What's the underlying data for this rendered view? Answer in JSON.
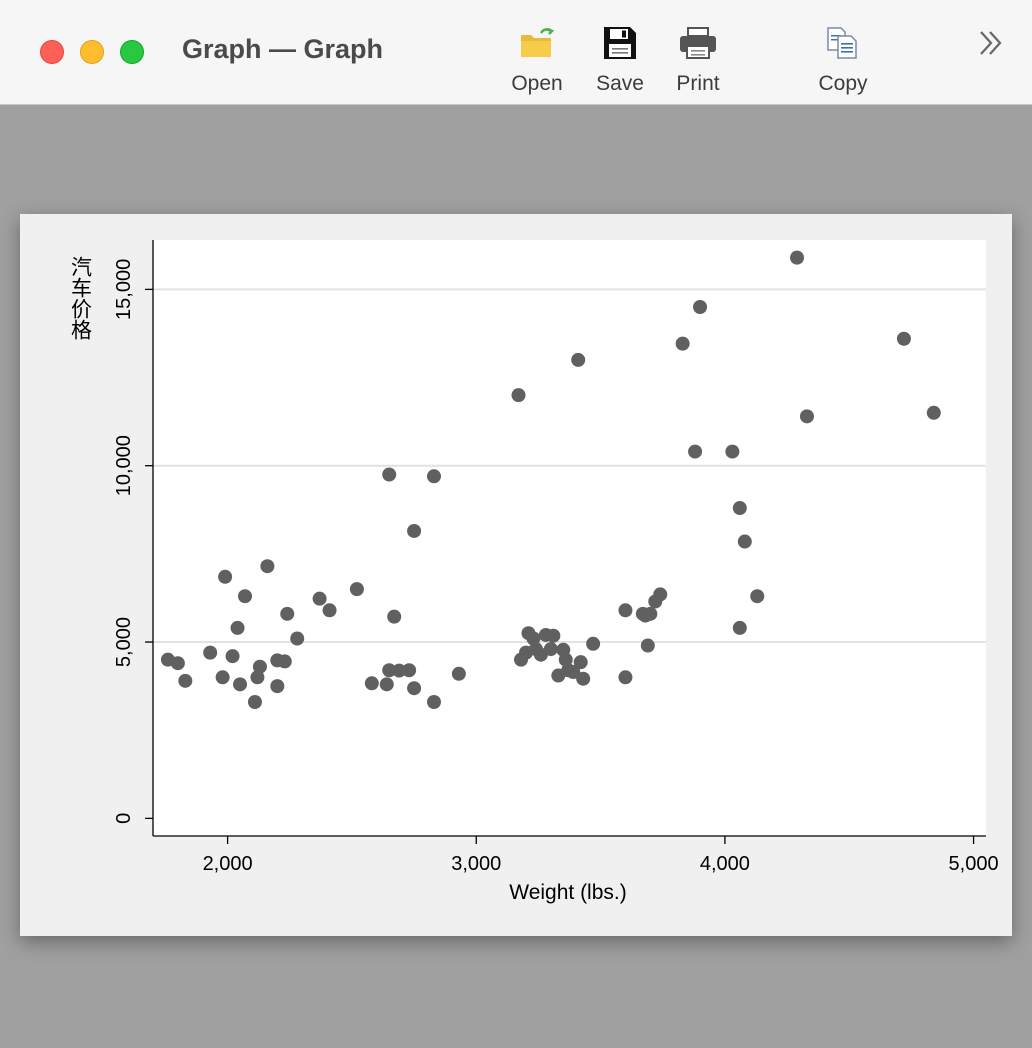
{
  "window": {
    "title": "Graph — Graph"
  },
  "toolbar": {
    "open_label": "Open",
    "save_label": "Save",
    "print_label": "Print",
    "copy_label": "Copy",
    "icons": [
      "folder-open-icon",
      "floppy-disk-icon",
      "printer-icon",
      "copy-icon",
      "chevron-double-right-icon"
    ]
  },
  "chart_data": {
    "type": "scatter",
    "title": "",
    "xlabel": "Weight (lbs.)",
    "ylabel": "汽车价格",
    "xlim": [
      1700,
      5050
    ],
    "ylim": [
      -500,
      16400
    ],
    "xticks": [
      2000,
      3000,
      4000,
      5000
    ],
    "xtick_labels": [
      "2,000",
      "3,000",
      "4,000",
      "5,000"
    ],
    "yticks": [
      0,
      5000,
      10000,
      15000
    ],
    "ytick_labels": [
      "0",
      "5,000",
      "10,000",
      "15,000"
    ],
    "grid": "horizontal",
    "legend": "none",
    "marker_color": "#606060",
    "plot_background": "#ffffff",
    "outer_background": "#f0f0f0",
    "points": [
      [
        1760,
        4500
      ],
      [
        1800,
        4400
      ],
      [
        1830,
        3900
      ],
      [
        1930,
        4700
      ],
      [
        1980,
        4000
      ],
      [
        1990,
        6850
      ],
      [
        2020,
        4600
      ],
      [
        2040,
        5400
      ],
      [
        2050,
        3800
      ],
      [
        2070,
        6300
      ],
      [
        2110,
        3300
      ],
      [
        2120,
        4000
      ],
      [
        2130,
        4300
      ],
      [
        2160,
        7150
      ],
      [
        2200,
        4480
      ],
      [
        2200,
        3750
      ],
      [
        2230,
        4450
      ],
      [
        2240,
        5800
      ],
      [
        2280,
        5100
      ],
      [
        2370,
        6230
      ],
      [
        2410,
        5900
      ],
      [
        2520,
        6500
      ],
      [
        2580,
        3830
      ],
      [
        2640,
        3800
      ],
      [
        2650,
        9750
      ],
      [
        2650,
        4200
      ],
      [
        2670,
        5720
      ],
      [
        2690,
        4190
      ],
      [
        2730,
        4200
      ],
      [
        2750,
        8150
      ],
      [
        2750,
        3690
      ],
      [
        2830,
        9700
      ],
      [
        2830,
        3300
      ],
      [
        2930,
        4100
      ],
      [
        3170,
        12000
      ],
      [
        3180,
        4500
      ],
      [
        3200,
        4700
      ],
      [
        3210,
        5250
      ],
      [
        3230,
        5100
      ],
      [
        3240,
        4800
      ],
      [
        3260,
        4640
      ],
      [
        3280,
        5200
      ],
      [
        3300,
        4800
      ],
      [
        3310,
        5180
      ],
      [
        3330,
        4050
      ],
      [
        3350,
        4780
      ],
      [
        3360,
        4500
      ],
      [
        3370,
        4200
      ],
      [
        3390,
        4150
      ],
      [
        3410,
        13000
      ],
      [
        3420,
        4430
      ],
      [
        3430,
        3960
      ],
      [
        3470,
        4950
      ],
      [
        3600,
        5900
      ],
      [
        3600,
        4000
      ],
      [
        3670,
        5800
      ],
      [
        3680,
        5750
      ],
      [
        3690,
        4900
      ],
      [
        3700,
        5800
      ],
      [
        3720,
        6150
      ],
      [
        3740,
        6350
      ],
      [
        3830,
        13460
      ],
      [
        3880,
        10400
      ],
      [
        3900,
        14500
      ],
      [
        4030,
        10400
      ],
      [
        4060,
        8800
      ],
      [
        4060,
        5400
      ],
      [
        4080,
        7850
      ],
      [
        4130,
        6300
      ],
      [
        4290,
        15900
      ],
      [
        4330,
        11400
      ],
      [
        4720,
        13600
      ],
      [
        4840,
        11500
      ]
    ]
  }
}
